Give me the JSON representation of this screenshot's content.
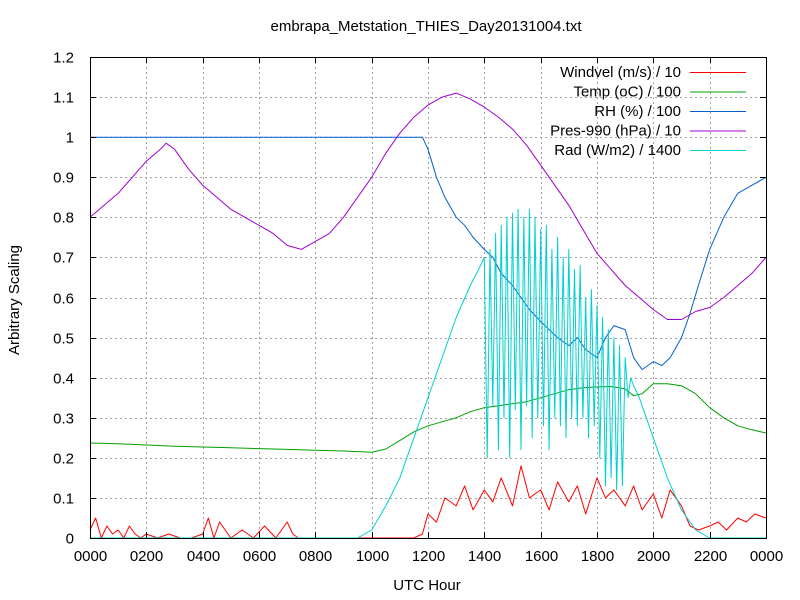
{
  "chart_data": {
    "type": "line",
    "title": "embrapa_Metstation_THIES_Day20131004.txt",
    "xlabel": "UTC Hour",
    "ylabel": "Arbitrary Scaling",
    "xlim": [
      0,
      24
    ],
    "ylim": [
      0,
      1.2
    ],
    "grid": true,
    "legend_position": "top-right",
    "x_ticks": [
      {
        "value": 0,
        "label": "0000"
      },
      {
        "value": 2,
        "label": "0200"
      },
      {
        "value": 4,
        "label": "0400"
      },
      {
        "value": 6,
        "label": "0600"
      },
      {
        "value": 8,
        "label": "0800"
      },
      {
        "value": 10,
        "label": "1000"
      },
      {
        "value": 12,
        "label": "1200"
      },
      {
        "value": 14,
        "label": "1400"
      },
      {
        "value": 16,
        "label": "1600"
      },
      {
        "value": 18,
        "label": "1800"
      },
      {
        "value": 20,
        "label": "2000"
      },
      {
        "value": 22,
        "label": "2200"
      },
      {
        "value": 24,
        "label": "0000"
      }
    ],
    "y_ticks": [
      {
        "value": 0,
        "label": "0"
      },
      {
        "value": 0.1,
        "label": "0.1"
      },
      {
        "value": 0.2,
        "label": "0.2"
      },
      {
        "value": 0.3,
        "label": "0.3"
      },
      {
        "value": 0.4,
        "label": "0.4"
      },
      {
        "value": 0.5,
        "label": "0.5"
      },
      {
        "value": 0.6,
        "label": "0.6"
      },
      {
        "value": 0.7,
        "label": "0.7"
      },
      {
        "value": 0.8,
        "label": "0.8"
      },
      {
        "value": 0.9,
        "label": "0.9"
      },
      {
        "value": 1.0,
        "label": "1"
      },
      {
        "value": 1.1,
        "label": "1.1"
      },
      {
        "value": 1.2,
        "label": "1.2"
      }
    ],
    "series": [
      {
        "name": "Windvel (m/s) / 10",
        "color": "#ff0000",
        "x": [
          0,
          0.2,
          0.4,
          0.6,
          0.8,
          1.0,
          1.2,
          1.4,
          1.6,
          1.8,
          2.0,
          2.4,
          2.8,
          3.2,
          3.6,
          4.0,
          4.2,
          4.4,
          4.6,
          5.0,
          5.4,
          5.8,
          6.2,
          6.6,
          7.0,
          7.2,
          7.4,
          8.0,
          8.4,
          9.0,
          10.0,
          11.0,
          11.5,
          11.8,
          12.0,
          12.3,
          12.6,
          13.0,
          13.3,
          13.6,
          14.0,
          14.3,
          14.6,
          15.0,
          15.3,
          15.6,
          16.0,
          16.3,
          16.6,
          17.0,
          17.3,
          17.6,
          18.0,
          18.3,
          18.6,
          19.0,
          19.3,
          19.6,
          20.0,
          20.3,
          20.6,
          21.0,
          21.3,
          21.6,
          22.0,
          22.3,
          22.6,
          23.0,
          23.3,
          23.6,
          24.0
        ],
        "y": [
          0.02,
          0.05,
          0.0,
          0.03,
          0.01,
          0.02,
          0.0,
          0.03,
          0.01,
          0.0,
          0.01,
          0.0,
          0.01,
          0.0,
          0.0,
          0.01,
          0.05,
          0.0,
          0.04,
          0.0,
          0.02,
          0.0,
          0.03,
          0.0,
          0.04,
          0.01,
          0.0,
          0.0,
          0.0,
          0.0,
          0.0,
          0.0,
          0.0,
          0.01,
          0.06,
          0.04,
          0.1,
          0.08,
          0.13,
          0.07,
          0.12,
          0.09,
          0.15,
          0.08,
          0.18,
          0.1,
          0.12,
          0.07,
          0.14,
          0.09,
          0.13,
          0.06,
          0.15,
          0.1,
          0.12,
          0.08,
          0.13,
          0.07,
          0.11,
          0.05,
          0.12,
          0.08,
          0.03,
          0.02,
          0.03,
          0.04,
          0.02,
          0.05,
          0.04,
          0.06,
          0.05
        ]
      },
      {
        "name": "Temp (oC) / 100",
        "color": "#00a000",
        "x": [
          0,
          1,
          2,
          3,
          4,
          5,
          6,
          7,
          8,
          9,
          10,
          10.5,
          11,
          11.5,
          12,
          12.5,
          13,
          13.5,
          14,
          14.5,
          15,
          15.5,
          16,
          16.5,
          17,
          17.5,
          18,
          18.5,
          19,
          19.3,
          19.6,
          20,
          20.5,
          21,
          21.5,
          22,
          22.5,
          23,
          23.5,
          24
        ],
        "y": [
          0.237,
          0.235,
          0.232,
          0.229,
          0.227,
          0.225,
          0.223,
          0.221,
          0.219,
          0.217,
          0.214,
          0.222,
          0.243,
          0.265,
          0.28,
          0.29,
          0.3,
          0.315,
          0.325,
          0.33,
          0.335,
          0.34,
          0.35,
          0.36,
          0.37,
          0.375,
          0.377,
          0.378,
          0.372,
          0.355,
          0.36,
          0.385,
          0.385,
          0.38,
          0.36,
          0.325,
          0.3,
          0.28,
          0.27,
          0.262
        ]
      },
      {
        "name": "RH (%) / 100",
        "color": "#0060d0",
        "x": [
          0,
          2,
          4,
          6,
          8,
          10,
          11,
          11.8,
          12.0,
          12.3,
          12.6,
          13.0,
          13.3,
          13.6,
          14.0,
          14.3,
          14.6,
          15.0,
          15.3,
          15.6,
          16.0,
          16.3,
          16.6,
          17.0,
          17.3,
          17.6,
          18.0,
          18.3,
          18.6,
          19.0,
          19.3,
          19.6,
          20.0,
          20.3,
          20.6,
          21.0,
          21.3,
          21.6,
          22.0,
          22.5,
          23.0,
          23.5,
          24.0
        ],
        "y": [
          1.0,
          1.0,
          1.0,
          1.0,
          1.0,
          1.0,
          1.0,
          1.0,
          0.97,
          0.9,
          0.85,
          0.8,
          0.78,
          0.75,
          0.72,
          0.7,
          0.66,
          0.63,
          0.6,
          0.57,
          0.54,
          0.52,
          0.5,
          0.48,
          0.5,
          0.47,
          0.45,
          0.5,
          0.53,
          0.52,
          0.45,
          0.42,
          0.44,
          0.43,
          0.45,
          0.5,
          0.56,
          0.63,
          0.72,
          0.8,
          0.86,
          0.88,
          0.9
        ]
      },
      {
        "name": "Pres-990 (hPa) / 10",
        "color": "#a000d0",
        "x": [
          0,
          0.5,
          1.0,
          1.5,
          2.0,
          2.5,
          2.7,
          3.0,
          3.5,
          4.0,
          4.5,
          5.0,
          5.5,
          6.0,
          6.5,
          7.0,
          7.5,
          8.0,
          8.5,
          9.0,
          9.5,
          10.0,
          10.5,
          11.0,
          11.5,
          12.0,
          12.5,
          13.0,
          13.5,
          14.0,
          14.5,
          15.0,
          15.5,
          16.0,
          16.5,
          17.0,
          17.5,
          18.0,
          18.5,
          19.0,
          19.5,
          20.0,
          20.5,
          21.0,
          21.5,
          22.0,
          22.5,
          23.0,
          23.5,
          24.0
        ],
        "y": [
          0.8,
          0.83,
          0.86,
          0.9,
          0.94,
          0.97,
          0.985,
          0.97,
          0.92,
          0.88,
          0.85,
          0.82,
          0.8,
          0.78,
          0.76,
          0.73,
          0.72,
          0.74,
          0.76,
          0.8,
          0.85,
          0.9,
          0.96,
          1.01,
          1.05,
          1.08,
          1.1,
          1.11,
          1.095,
          1.075,
          1.05,
          1.02,
          0.98,
          0.93,
          0.88,
          0.83,
          0.77,
          0.71,
          0.67,
          0.63,
          0.6,
          0.57,
          0.545,
          0.545,
          0.565,
          0.575,
          0.6,
          0.63,
          0.66,
          0.7
        ]
      },
      {
        "name": "Rad (W/m2) / 1400",
        "color": "#00d0d0",
        "x": [
          0,
          2,
          4,
          6,
          8,
          9.5,
          10.0,
          10.5,
          11.0,
          11.5,
          12.0,
          12.5,
          13.0,
          13.5,
          13.8,
          14.0,
          14.1,
          14.2,
          14.3,
          14.4,
          14.5,
          14.6,
          14.7,
          14.8,
          14.9,
          15.0,
          15.1,
          15.2,
          15.3,
          15.4,
          15.5,
          15.6,
          15.7,
          15.8,
          15.9,
          16.0,
          16.1,
          16.2,
          16.3,
          16.4,
          16.5,
          16.6,
          16.7,
          16.8,
          16.9,
          17.0,
          17.1,
          17.2,
          17.3,
          17.4,
          17.5,
          17.6,
          17.7,
          17.8,
          17.9,
          18.0,
          18.1,
          18.2,
          18.3,
          18.4,
          18.5,
          18.6,
          18.7,
          18.8,
          18.9,
          19.0,
          19.1,
          19.2,
          19.3,
          19.5,
          20.0,
          20.5,
          21.0,
          21.5,
          22.0,
          22.5,
          23.0,
          24.0
        ],
        "y": [
          0,
          0,
          0,
          0,
          0,
          0.0,
          0.02,
          0.08,
          0.15,
          0.25,
          0.35,
          0.45,
          0.55,
          0.63,
          0.67,
          0.7,
          0.2,
          0.72,
          0.33,
          0.76,
          0.22,
          0.78,
          0.3,
          0.8,
          0.2,
          0.81,
          0.32,
          0.82,
          0.22,
          0.8,
          0.33,
          0.82,
          0.25,
          0.8,
          0.3,
          0.77,
          0.28,
          0.78,
          0.22,
          0.72,
          0.3,
          0.75,
          0.28,
          0.7,
          0.25,
          0.72,
          0.3,
          0.67,
          0.28,
          0.68,
          0.3,
          0.6,
          0.25,
          0.62,
          0.28,
          0.58,
          0.2,
          0.55,
          0.13,
          0.52,
          0.15,
          0.5,
          0.12,
          0.48,
          0.13,
          0.45,
          0.35,
          0.4,
          0.38,
          0.35,
          0.25,
          0.15,
          0.07,
          0.02,
          0.0,
          0.0,
          0.0,
          0.0
        ]
      }
    ]
  }
}
